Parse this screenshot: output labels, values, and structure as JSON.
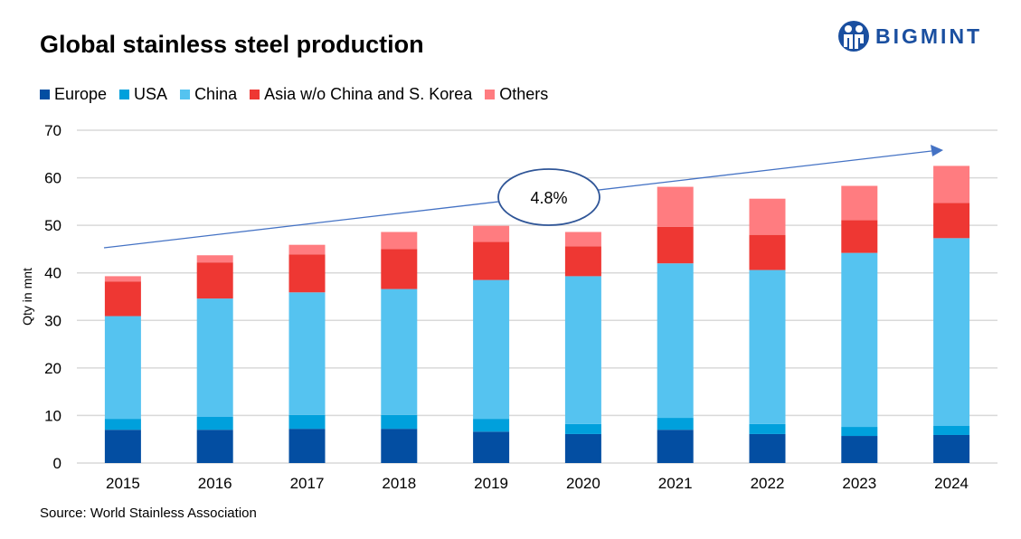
{
  "title": "Global stainless steel production",
  "source": "Source: World Stainless Association",
  "logo_text": "BIGMINT",
  "chart_data": {
    "type": "bar",
    "stacked": true,
    "title": "Global stainless steel production",
    "xlabel": "",
    "ylabel": "Qty in mnt",
    "ylim": [
      0,
      70
    ],
    "yticks": [
      0,
      10,
      20,
      30,
      40,
      50,
      60,
      70
    ],
    "grid": true,
    "legend_position": "top-left",
    "categories": [
      "2015",
      "2016",
      "2017",
      "2018",
      "2019",
      "2020",
      "2021",
      "2022",
      "2023",
      "2024"
    ],
    "series": [
      {
        "name": "Europe",
        "color": "#034ea2",
        "values": [
          7.0,
          7.0,
          7.2,
          7.2,
          6.6,
          6.1,
          7.0,
          6.1,
          5.7,
          5.9
        ]
      },
      {
        "name": "USA",
        "color": "#00a0dc",
        "values": [
          2.3,
          2.7,
          2.9,
          2.9,
          2.7,
          2.1,
          2.5,
          2.1,
          1.9,
          1.9
        ]
      },
      {
        "name": "China",
        "color": "#55c3f0",
        "values": [
          21.6,
          24.9,
          25.8,
          26.5,
          29.2,
          31.1,
          32.5,
          32.4,
          36.6,
          39.5
        ]
      },
      {
        "name": "Asia w/o China and S. Korea",
        "color": "#ee3733",
        "values": [
          7.3,
          7.6,
          8.0,
          8.4,
          8.0,
          6.3,
          7.7,
          7.4,
          6.9,
          7.4
        ]
      },
      {
        "name": "Others",
        "color": "#ff7c80",
        "values": [
          1.1,
          1.5,
          2.0,
          3.6,
          3.4,
          3.0,
          8.4,
          7.6,
          7.2,
          7.8
        ]
      }
    ],
    "annotations": [
      {
        "text": "4.8%",
        "type": "trend-arrow-callout"
      }
    ]
  }
}
